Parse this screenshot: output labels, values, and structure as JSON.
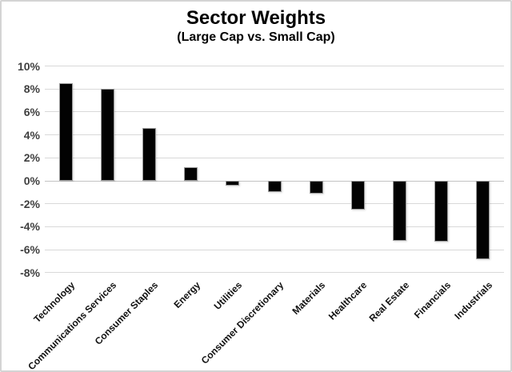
{
  "chart": {
    "title": "Sector Weights",
    "subtitle": "(Large Cap vs. Small Cap)"
  },
  "chart_data": {
    "type": "bar",
    "title": "Sector Weights",
    "subtitle": "(Large Cap vs. Small Cap)",
    "categories": [
      "Technology",
      "Communications Services",
      "Consumer Staples",
      "Energy",
      "Utilities",
      "Consumer Discretionary",
      "Materials",
      "Healthcare",
      "Real Estate",
      "Financials",
      "Industrials"
    ],
    "values": [
      8.5,
      8.0,
      4.6,
      1.2,
      -0.4,
      -1.0,
      -1.1,
      -2.5,
      -5.2,
      -5.3,
      -6.8
    ],
    "xlabel": "",
    "ylabel": "",
    "ylim": [
      -8,
      10
    ],
    "ytick_step": 2,
    "ytick_labels": [
      "10%",
      "8%",
      "6%",
      "4%",
      "2%",
      "0%",
      "-2%",
      "-4%",
      "-6%",
      "-8%"
    ],
    "ytick_values": [
      10,
      8,
      6,
      4,
      2,
      0,
      -2,
      -4,
      -6,
      -8
    ],
    "grid": true,
    "legend_position": "none",
    "bar_color": "#020202",
    "gridline_color": "#d9d9d9",
    "axis_label_color": "#3f3f3f",
    "category_label_color": "#111111",
    "background_color": "#ffffff",
    "border_color": "#d4d4d4"
  }
}
